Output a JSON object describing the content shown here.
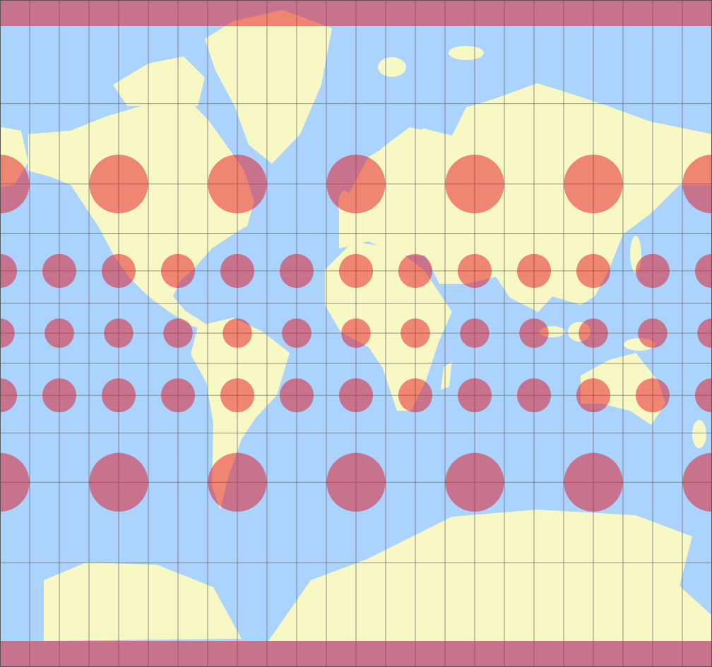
{
  "map": {
    "projection": "Mercator",
    "graticule_interval_deg": 15,
    "latitude_extent_deg": [
      -87,
      87
    ],
    "features": [
      "land",
      "ocean",
      "graticule",
      "tissot-indicatrices"
    ],
    "tissot": {
      "rows": [
        {
          "lat": 60,
          "lon_step": 60
        },
        {
          "lat": 30,
          "lon_step": 30
        },
        {
          "lat": 0,
          "lon_step": 30
        },
        {
          "lat": -30,
          "lon_step": 30
        },
        {
          "lat": -60,
          "lon_step": 60
        }
      ],
      "polar_bands": [
        90,
        -90
      ]
    },
    "colors": {
      "ocean": "#aad3ff",
      "land": "#f8f8c4",
      "graticule": "#6e6e6e",
      "indicatrix": "rgba(228,20,30,0.5)"
    }
  }
}
